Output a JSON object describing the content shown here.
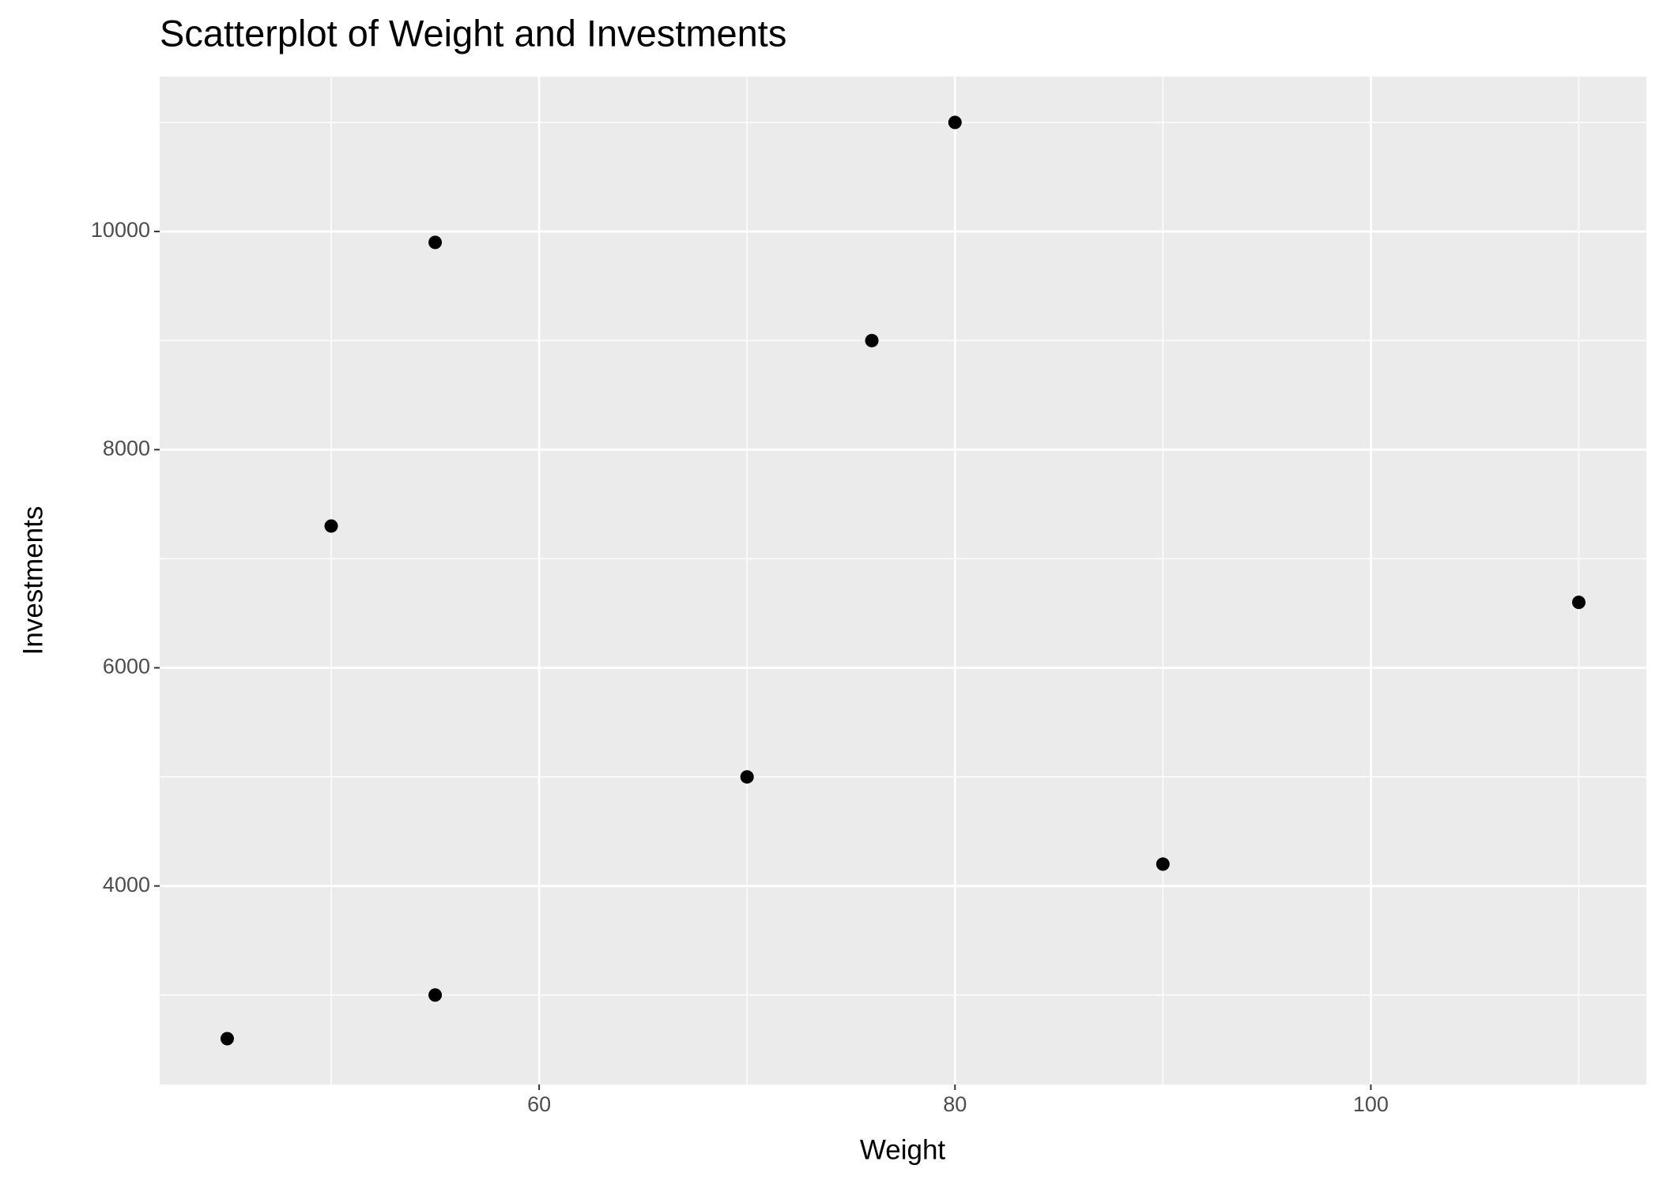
{
  "chart_data": {
    "type": "scatter",
    "title": "Scatterplot of Weight and Investments",
    "x_label": "Weight",
    "y_label": "Investments",
    "x": [
      45,
      50,
      55,
      55,
      70,
      76,
      80,
      90,
      110
    ],
    "values": [
      2600,
      7300,
      9900,
      3000,
      5000,
      9000,
      11000,
      4200,
      6600
    ],
    "color": "#000000",
    "xlim": [
      41.75,
      113.25
    ],
    "xticks": [
      60,
      80,
      100
    ],
    "x_minor_ticks": [
      50,
      70,
      90,
      110
    ],
    "ylim": [
      2180,
      11420
    ],
    "yticks": [
      4000,
      6000,
      8000,
      10000
    ],
    "y_minor_ticks": [
      3000,
      5000,
      7000,
      9000,
      11000
    ],
    "grid": true
  }
}
